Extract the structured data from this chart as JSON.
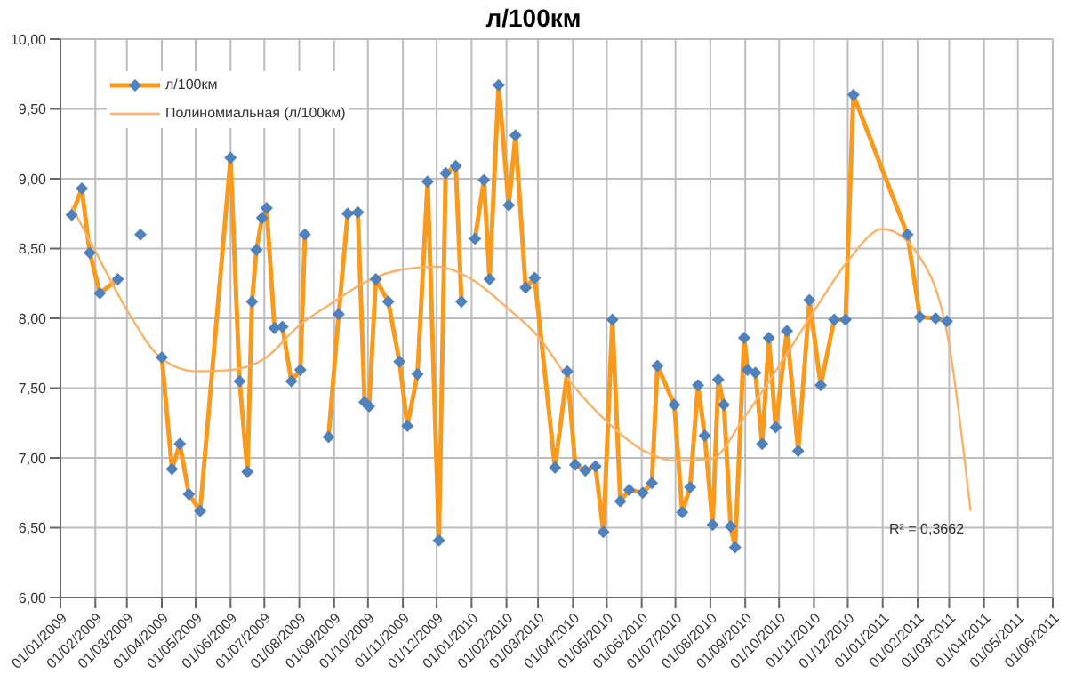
{
  "chart_data": {
    "type": "line",
    "title": "л/100км",
    "legend": "top left",
    "grid": true,
    "marker": "diamond",
    "line_style": "solid",
    "xlim": [
      "2009-01-01",
      "2011-06-01"
    ],
    "xticks": [
      {
        "value": "2009-01-01",
        "label": "01/01/2009"
      },
      {
        "value": "2009-02-01",
        "label": "01/02/2009"
      },
      {
        "value": "2009-03-01",
        "label": "01/03/2009"
      },
      {
        "value": "2009-04-01",
        "label": "01/04/2009"
      },
      {
        "value": "2009-05-01",
        "label": "01/05/2009"
      },
      {
        "value": "2009-06-01",
        "label": "01/06/2009"
      },
      {
        "value": "2009-07-01",
        "label": "01/07/2009"
      },
      {
        "value": "2009-08-01",
        "label": "01/08/2009"
      },
      {
        "value": "2009-09-01",
        "label": "01/09/2009"
      },
      {
        "value": "2009-10-01",
        "label": "01/10/2009"
      },
      {
        "value": "2009-11-01",
        "label": "01/11/2009"
      },
      {
        "value": "2009-12-01",
        "label": "01/12/2009"
      },
      {
        "value": "2010-01-01",
        "label": "01/01/2010"
      },
      {
        "value": "2010-02-01",
        "label": "01/02/2010"
      },
      {
        "value": "2010-03-01",
        "label": "01/03/2010"
      },
      {
        "value": "2010-04-01",
        "label": "01/04/2010"
      },
      {
        "value": "2010-05-01",
        "label": "01/05/2010"
      },
      {
        "value": "2010-06-01",
        "label": "01/06/2010"
      },
      {
        "value": "2010-07-01",
        "label": "01/07/2010"
      },
      {
        "value": "2010-08-01",
        "label": "01/08/2010"
      },
      {
        "value": "2010-09-01",
        "label": "01/09/2010"
      },
      {
        "value": "2010-10-01",
        "label": "01/10/2010"
      },
      {
        "value": "2010-11-01",
        "label": "01/11/2010"
      },
      {
        "value": "2010-12-01",
        "label": "01/12/2010"
      },
      {
        "value": "2011-01-01",
        "label": "01/01/2011"
      },
      {
        "value": "2011-02-01",
        "label": "01/02/2011"
      },
      {
        "value": "2011-03-01",
        "label": "01/03/2011"
      },
      {
        "value": "2011-04-01",
        "label": "01/04/2011"
      },
      {
        "value": "2011-05-01",
        "label": "01/05/2011"
      },
      {
        "value": "2011-06-01",
        "label": "01/06/2011"
      }
    ],
    "ylim": [
      6,
      10
    ],
    "yticks": [
      {
        "value": 6,
        "label": "6,00"
      },
      {
        "value": 6.5,
        "label": "6,50"
      },
      {
        "value": 7,
        "label": "7,00"
      },
      {
        "value": 7.5,
        "label": "7,50"
      },
      {
        "value": 8,
        "label": "8,00"
      },
      {
        "value": 8.5,
        "label": "8,50"
      },
      {
        "value": 9,
        "label": "9,00"
      },
      {
        "value": 9.5,
        "label": "9,50"
      },
      {
        "value": 10,
        "label": "10,00"
      }
    ],
    "annotations": [
      "R² = 0,3662"
    ],
    "series": [
      {
        "name": "л/100км",
        "color": "#f79a1e",
        "x": [
          "2009-01-11",
          "2009-01-20",
          "2009-01-27",
          "2009-02-05",
          "2009-02-21",
          "2009-03-05",
          "2009-03-13",
          "2009-03-22",
          "2009-04-01",
          "2009-04-10",
          "2009-04-17",
          "2009-04-25",
          "2009-05-05",
          "2009-06-01",
          "2009-06-09",
          "2009-06-16",
          "2009-06-20",
          "2009-06-24",
          "2009-06-29",
          "2009-07-03",
          "2009-07-10",
          "2009-07-17",
          "2009-07-25",
          "2009-08-02",
          "2009-08-06",
          "2009-08-16",
          "2009-08-27",
          "2009-09-05",
          "2009-09-13",
          "2009-09-22",
          "2009-09-28",
          "2009-10-02",
          "2009-10-08",
          "2009-10-19",
          "2009-10-29",
          "2009-11-05",
          "2009-11-14",
          "2009-11-23",
          "2009-12-03",
          "2009-12-09",
          "2009-12-18",
          "2009-12-23",
          "2009-12-28",
          "2010-01-04",
          "2010-01-12",
          "2010-01-17",
          "2010-01-25",
          "2010-02-03",
          "2010-02-09",
          "2010-02-18",
          "2010-02-26",
          "2010-03-16",
          "2010-03-27",
          "2010-04-03",
          "2010-04-12",
          "2010-04-21",
          "2010-04-28",
          "2010-05-06",
          "2010-05-13",
          "2010-05-21",
          "2010-06-02",
          "2010-06-10",
          "2010-06-15",
          "2010-06-30",
          "2010-07-07",
          "2010-07-14",
          "2010-07-21",
          "2010-07-27",
          "2010-08-03",
          "2010-08-08",
          "2010-08-13",
          "2010-08-19",
          "2010-08-23",
          "2010-08-31",
          "2010-09-03",
          "2010-09-10",
          "2010-09-16",
          "2010-09-22",
          "2010-09-28",
          "2010-10-08",
          "2010-10-18",
          "2010-10-28",
          "2010-11-07",
          "2010-11-19",
          "2010-11-29",
          "2010-12-06",
          "2011-01-23",
          "2011-02-03",
          "2011-02-17",
          "2011-02-27"
        ],
        "values": [
          8.74,
          8.93,
          8.47,
          8.18,
          8.28,
          null,
          8.6,
          null,
          7.72,
          6.92,
          7.1,
          6.74,
          6.62,
          9.15,
          7.55,
          6.9,
          8.12,
          8.49,
          8.72,
          8.79,
          7.93,
          7.94,
          7.55,
          7.63,
          8.6,
          null,
          7.15,
          8.03,
          8.75,
          8.76,
          7.4,
          7.37,
          8.28,
          8.12,
          7.69,
          7.23,
          7.6,
          8.98,
          6.41,
          9.04,
          9.09,
          8.12,
          null,
          8.57,
          8.99,
          8.28,
          9.67,
          8.81,
          9.31,
          8.22,
          8.29,
          6.93,
          7.62,
          6.95,
          6.91,
          6.94,
          6.47,
          7.99,
          6.69,
          6.77,
          6.75,
          6.82,
          7.66,
          7.38,
          6.61,
          6.79,
          7.52,
          7.16,
          6.52,
          7.56,
          7.38,
          6.51,
          6.36,
          7.86,
          7.63,
          7.61,
          7.1,
          7.86,
          7.22,
          7.91,
          7.05,
          8.13,
          7.52,
          7.99,
          7.99,
          9.6,
          8.6,
          8.01,
          8,
          7.98
        ],
        "colors": [
          "#4f81bd",
          "#4f81bd",
          "#4f81bd",
          "#4f81bd",
          "#4f81bd",
          "#4f81bd",
          "#4f81bd",
          "#4f81bd",
          "#4f81bd",
          "#4f81bd",
          "#4f81bd",
          "#4f81bd",
          "#4f81bd",
          "#4f81bd",
          "#4f81bd",
          "#4f81bd",
          "#4f81bd",
          "#4f81bd",
          "#4f81bd",
          "#4f81bd",
          "#4f81bd",
          "#4f81bd",
          "#4f81bd",
          "#4f81bd",
          "#4f81bd",
          "#4f81bd",
          "#4f81bd",
          "#4f81bd",
          "#4f81bd",
          "#4f81bd",
          "#4f81bd",
          "#4f81bd",
          "#4f81bd",
          "#4f81bd",
          "#4f81bd",
          "#4f81bd",
          "#4f81bd",
          "#4f81bd",
          "#4f81bd",
          "#4f81bd",
          "#4f81bd",
          "#4f81bd",
          "#4f81bd",
          "#4f81bd",
          "#4f81bd",
          "#4f81bd",
          "#4f81bd",
          "#4f81bd",
          "#4f81bd",
          "#4f81bd",
          "#4f81bd",
          "#4f81bd",
          "#4f81bd",
          "#4f81bd",
          "#4f81bd",
          "#4f81bd",
          "#4f81bd",
          "#4f81bd",
          "#4f81bd",
          "#4f81bd",
          "#4f81bd",
          "#4f81bd",
          "#4f81bd",
          "#4f81bd",
          "#4f81bd",
          "#4f81bd",
          "#4f81bd",
          "#4f81bd",
          "#4f81bd",
          "#4f81bd",
          "#4f81bd",
          "#4f81bd",
          "#4f81bd",
          "#4f81bd",
          "#4f81bd",
          "#4f81bd",
          "#4f81bd",
          "#4f81bd",
          "#4f81bd",
          "#4f81bd",
          "#4f81bd",
          "#4f81bd",
          "#4f81bd",
          "#4f81bd",
          "#4f81bd",
          "#4f81bd",
          "#4f81bd",
          "#4f81bd",
          "#4f81bd",
          "#4f81bd"
        ]
      },
      {
        "name": "Полиномиальная (л/100км)",
        "type": "line",
        "color": "#f8b26a",
        "marker": "none",
        "x": [
          "2009-01-11",
          "2009-02-01",
          "2009-03-01",
          "2009-04-01",
          "2009-05-01",
          "2009-06-01",
          "2009-07-01",
          "2009-08-01",
          "2009-09-01",
          "2009-10-01",
          "2009-11-01",
          "2009-12-01",
          "2010-01-01",
          "2010-02-01",
          "2010-03-01",
          "2010-04-01",
          "2010-05-01",
          "2010-06-01",
          "2010-07-01",
          "2010-08-01",
          "2010-09-01",
          "2010-10-01",
          "2010-11-01",
          "2010-12-01",
          "2011-01-01",
          "2011-02-01",
          "2011-03-01",
          "2011-03-20"
        ],
        "values": [
          8.8,
          8.48,
          8.06,
          7.71,
          7.62,
          7.63,
          7.71,
          7.95,
          8.12,
          8.27,
          8.35,
          8.37,
          8.28,
          8.08,
          7.87,
          7.52,
          7.26,
          7.06,
          6.98,
          6.99,
          7.3,
          7.66,
          8.05,
          8.41,
          8.64,
          8.46,
          7.81,
          6.62
        ]
      }
    ]
  }
}
